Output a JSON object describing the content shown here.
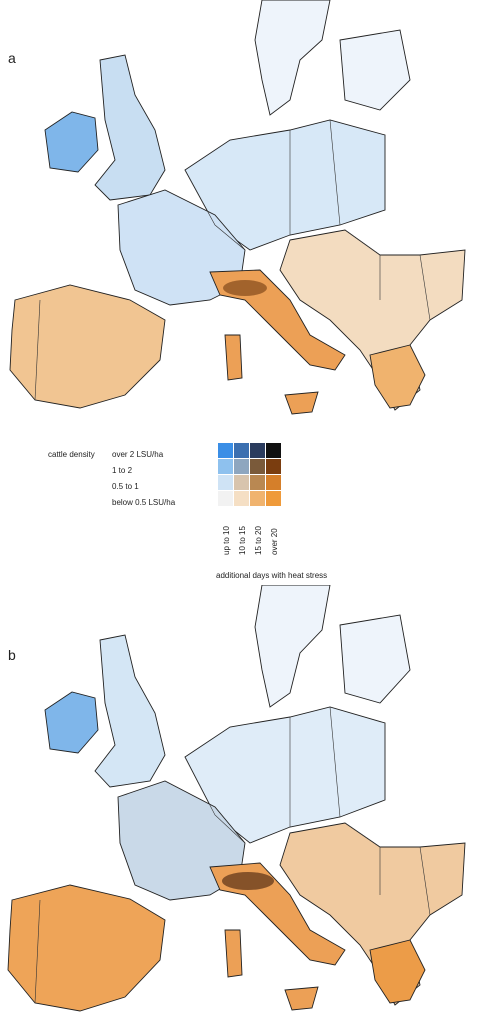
{
  "panels": [
    {
      "label": "a"
    },
    {
      "label": "b"
    }
  ],
  "legend": {
    "row_title": "cattle density",
    "rows": [
      "over 2 LSU/ha",
      "1 to 2",
      "0.5 to 1",
      "below 0.5 LSU/ha"
    ],
    "columns": [
      "up to 10",
      "10 to 15",
      "15 to 20",
      "over 20"
    ],
    "x_title": "additional days with heat stress",
    "colors": [
      [
        "#3a8ee6",
        "#3b6fb0",
        "#2b3c5e",
        "#111111"
      ],
      [
        "#8ec1ee",
        "#8ea6bf",
        "#7a5a3a",
        "#7a3d0f"
      ],
      [
        "#cfe3f5",
        "#d8c4ad",
        "#b98852",
        "#d57f2a"
      ],
      [
        "#f2f2f2",
        "#f5dfc4",
        "#f0b36e",
        "#ef9a3a"
      ]
    ]
  },
  "map_colors": {
    "low_density_low_stress": "#f2f2f2",
    "blue_high_density": "#bcd8f1",
    "orange_high_stress": "#eea15a",
    "dark_hotspot": "#6b3f1e"
  }
}
